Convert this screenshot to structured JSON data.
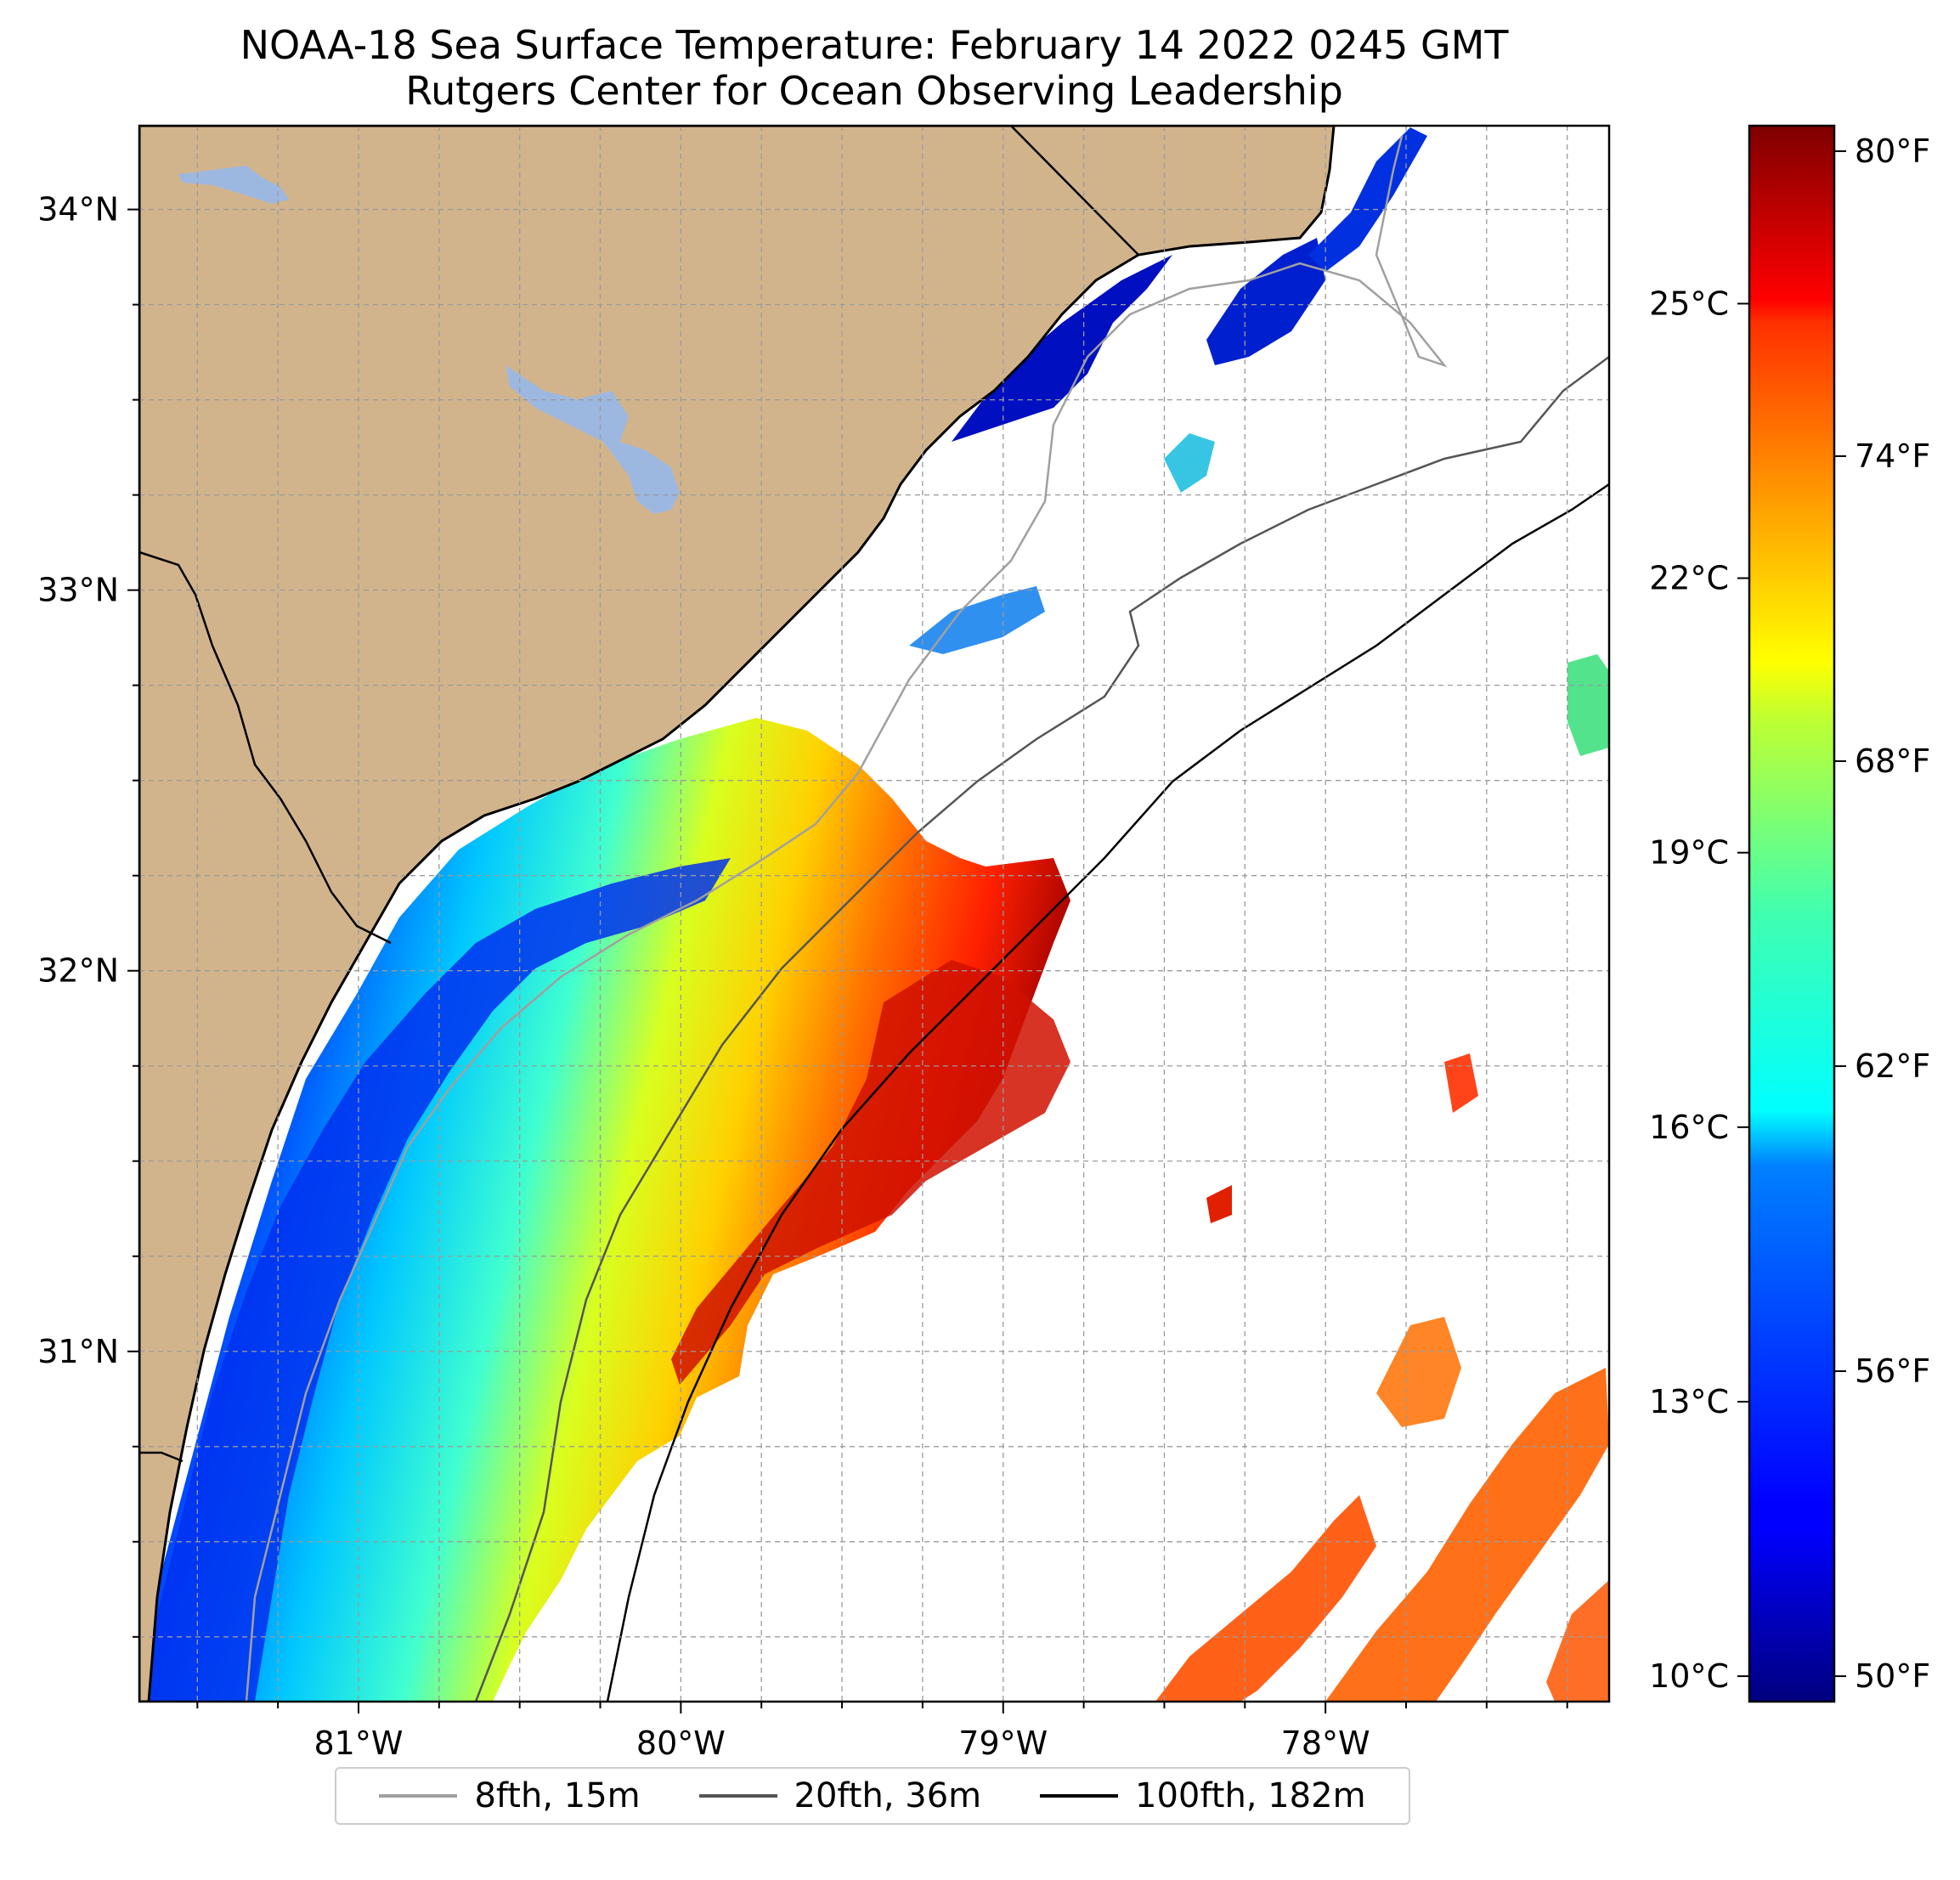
{
  "title": "NOAA-18 Sea Surface Temperature: February 14 2022 0245 GMT",
  "subtitle": "Rutgers Center for Ocean Observing Leadership",
  "map": {
    "lon_range": [
      -81.68,
      -77.12
    ],
    "lat_range": [
      30.08,
      34.22
    ],
    "lat_ticks": [
      {
        "value": 34,
        "label": "34°N"
      },
      {
        "value": 33,
        "label": "33°N"
      },
      {
        "value": 32,
        "label": "32°N"
      },
      {
        "value": 31,
        "label": "31°N"
      }
    ],
    "lon_ticks": [
      {
        "value": -81,
        "label": "81°W"
      },
      {
        "value": -80,
        "label": "80°W"
      },
      {
        "value": -79,
        "label": "79°W"
      },
      {
        "value": -78,
        "label": "78°W"
      }
    ],
    "gridlines": true,
    "land_color": "#d2b48c",
    "lake_color": "#9db8e0"
  },
  "colorbar": {
    "celsius_ticks": [
      {
        "value": 10,
        "label": "10°C"
      },
      {
        "value": 13,
        "label": "13°C"
      },
      {
        "value": 16,
        "label": "16°C"
      },
      {
        "value": 19,
        "label": "19°C"
      },
      {
        "value": 22,
        "label": "22°C"
      },
      {
        "value": 25,
        "label": "25°C"
      }
    ],
    "fahrenheit_ticks": [
      {
        "value": 50,
        "label": "50°F"
      },
      {
        "value": 56,
        "label": "56°F"
      },
      {
        "value": 62,
        "label": "62°F"
      },
      {
        "value": 68,
        "label": "68°F"
      },
      {
        "value": 74,
        "label": "74°F"
      },
      {
        "value": 80,
        "label": "80°F"
      }
    ],
    "colormap": "jet"
  },
  "legend": {
    "items": [
      {
        "label": "8fth, 15m",
        "color": "#a0a0a0"
      },
      {
        "label": "20fth, 36m",
        "color": "#555555"
      },
      {
        "label": "100fth, 182m",
        "color": "#000000"
      }
    ]
  },
  "chart_data": {
    "type": "heatmap",
    "title": "NOAA-18 Sea Surface Temperature: February 14 2022 0245 GMT",
    "subtitle": "Rutgers Center for Ocean Observing Leadership",
    "value_range_f": [
      49.5,
      80.5
    ],
    "value_range_c": [
      9.7,
      26.9
    ]
  }
}
